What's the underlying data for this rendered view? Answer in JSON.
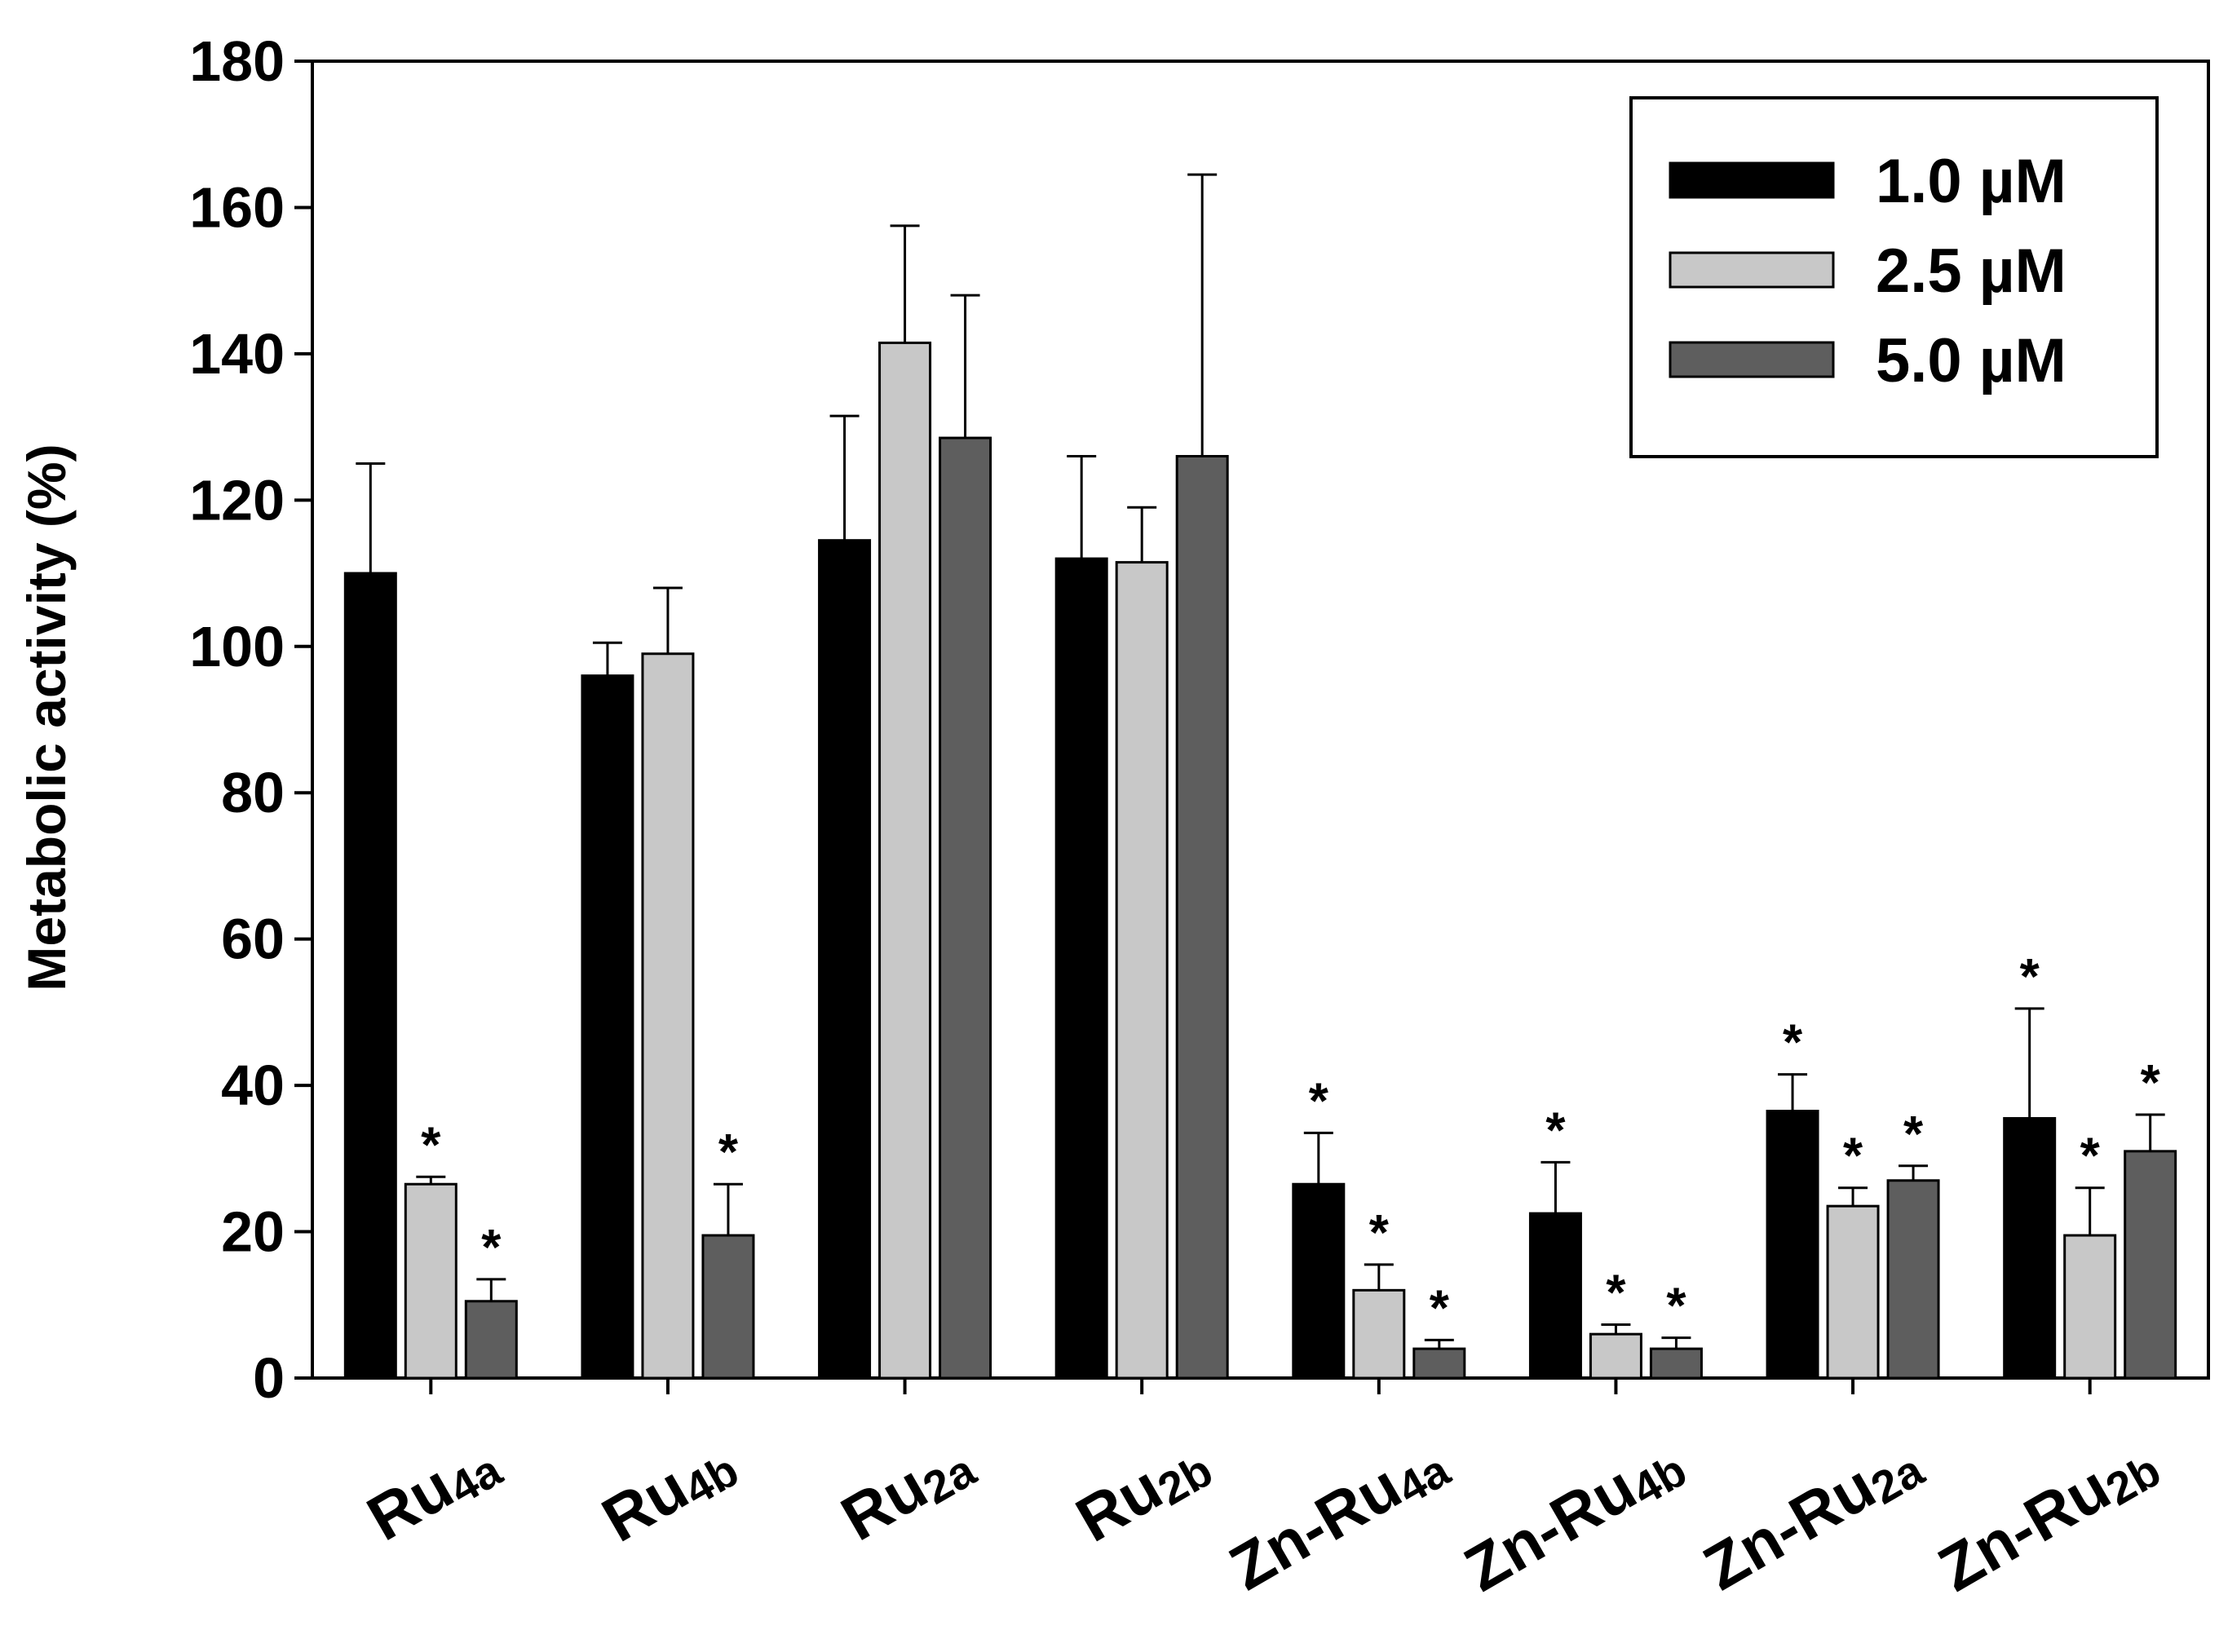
{
  "chart_data": {
    "type": "bar",
    "title": "",
    "xlabel": "",
    "ylabel": "Metabolic activity (%)",
    "ylim": [
      0,
      180
    ],
    "yticks": [
      0,
      20,
      40,
      60,
      80,
      100,
      120,
      140,
      160,
      180
    ],
    "grid": false,
    "legend_position": "top-right",
    "categories": [
      {
        "prefix": "Ru",
        "sub": "4a"
      },
      {
        "prefix": "Ru",
        "sub": "4b"
      },
      {
        "prefix": "Ru",
        "sub": "2a"
      },
      {
        "prefix": "Ru",
        "sub": "2b"
      },
      {
        "prefix": "Zn-Ru",
        "sub": "4a"
      },
      {
        "prefix": "Zn-Ru",
        "sub": "4b"
      },
      {
        "prefix": "Zn-Ru",
        "sub": "2a"
      },
      {
        "prefix": "Zn-Ru",
        "sub": "2b"
      }
    ],
    "series": [
      {
        "name": "1.0 µM",
        "color": "#000000",
        "values": [
          110,
          96,
          114.5,
          112,
          26.5,
          22.5,
          36.5,
          35.5
        ],
        "errors": [
          15,
          4.5,
          17,
          14,
          7,
          7,
          5,
          15
        ],
        "significant": [
          false,
          false,
          false,
          false,
          true,
          true,
          true,
          true
        ]
      },
      {
        "name": "2.5 µM",
        "color": "#c8c8c8",
        "values": [
          26.5,
          99,
          141.5,
          111.5,
          12,
          6,
          23.5,
          19.5
        ],
        "errors": [
          1,
          9,
          16,
          7.5,
          3.5,
          1.3,
          2.5,
          6.5
        ],
        "significant": [
          true,
          false,
          false,
          false,
          true,
          true,
          true,
          true
        ]
      },
      {
        "name": "5.0 µM",
        "color": "#5e5e5e",
        "values": [
          10.5,
          19.5,
          128.5,
          126,
          4,
          4,
          27,
          31
        ],
        "errors": [
          3,
          7,
          19.5,
          38.5,
          1.2,
          1.5,
          2,
          5
        ],
        "significant": [
          true,
          true,
          false,
          false,
          true,
          true,
          true,
          true
        ]
      }
    ],
    "significance_marker": "*"
  }
}
